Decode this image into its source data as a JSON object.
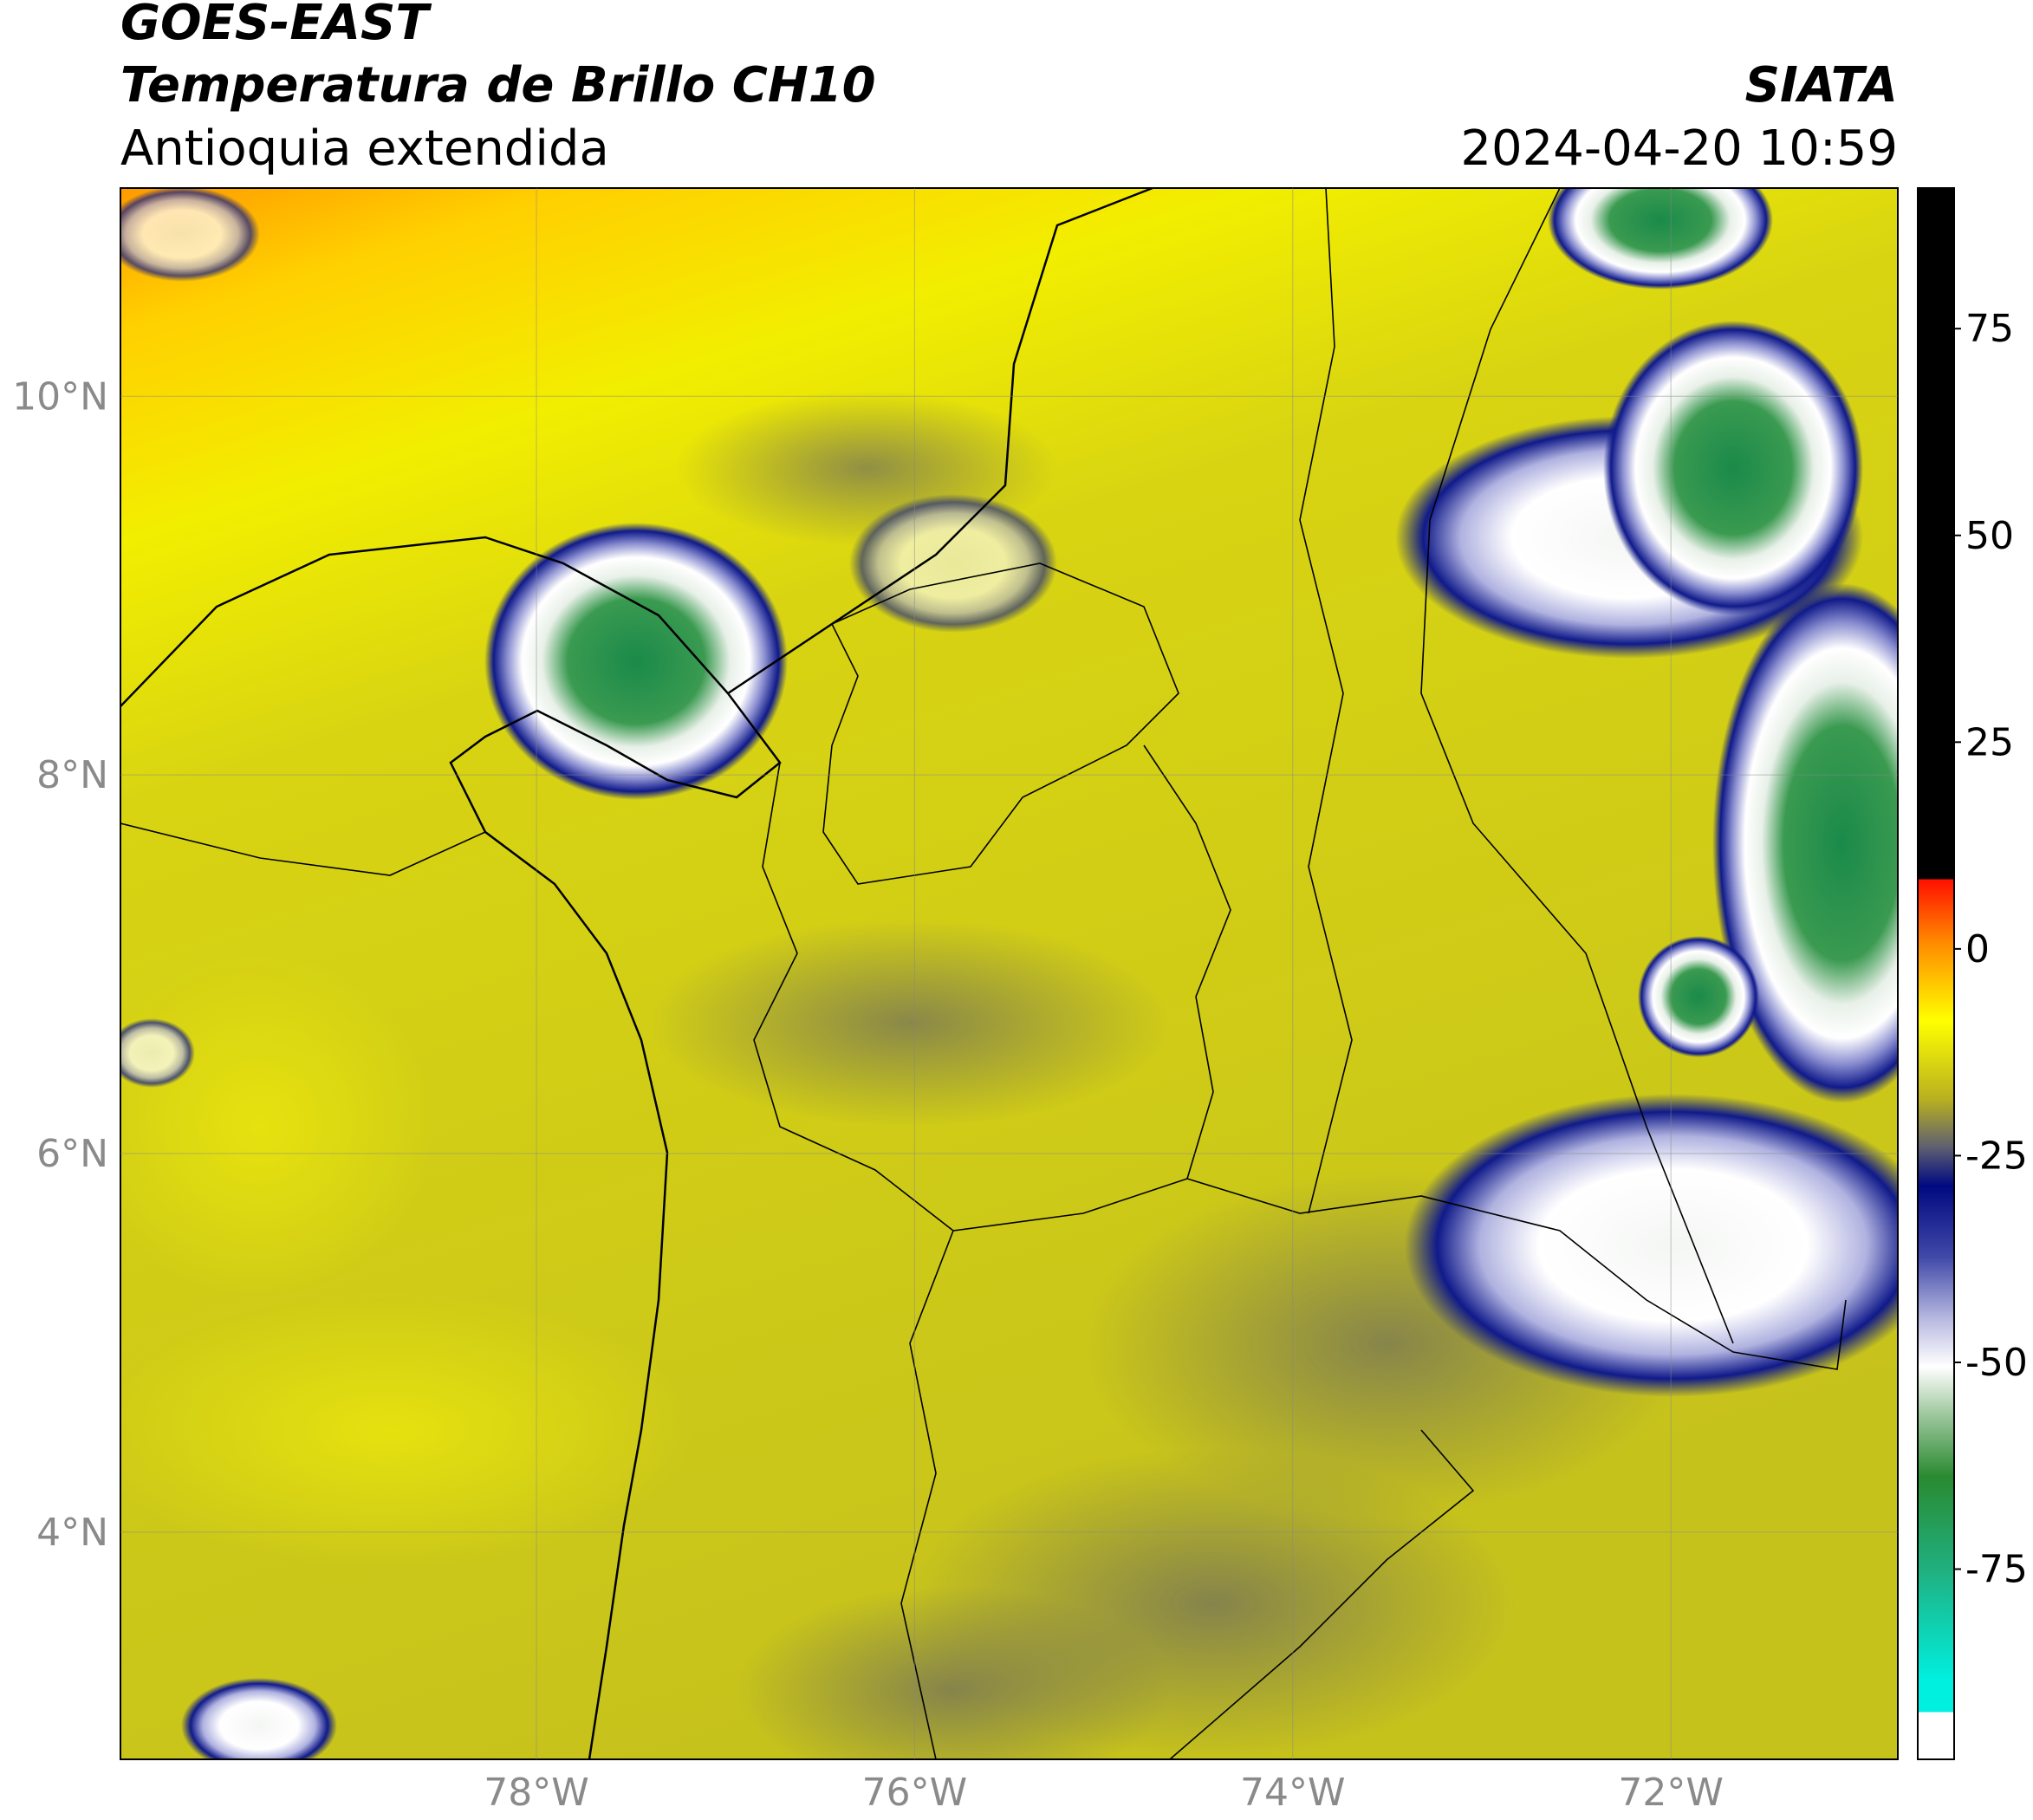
{
  "header": {
    "satellite": "GOES-EAST",
    "product": "Temperatura de Brillo CH10",
    "region": "Antioquia extendida",
    "agency": "SIATA",
    "datetime": "2024-04-20 10:59"
  },
  "map": {
    "xlim": [
      -80.2,
      -70.8
    ],
    "ylim": [
      2.8,
      11.1
    ],
    "xticks": [
      {
        "value": -78,
        "label": "78°W"
      },
      {
        "value": -76,
        "label": "76°W"
      },
      {
        "value": -74,
        "label": "74°W"
      },
      {
        "value": -72,
        "label": "72°W"
      }
    ],
    "yticks": [
      {
        "value": 10,
        "label": "10°N"
      },
      {
        "value": 8,
        "label": "8°N"
      },
      {
        "value": 6,
        "label": "6°N"
      },
      {
        "value": 4,
        "label": "4°N"
      }
    ],
    "grid": true
  },
  "colorbar": {
    "lim": [
      -98,
      92
    ],
    "ticks": [
      75,
      50,
      25,
      0,
      -25,
      -50,
      -75
    ]
  }
}
